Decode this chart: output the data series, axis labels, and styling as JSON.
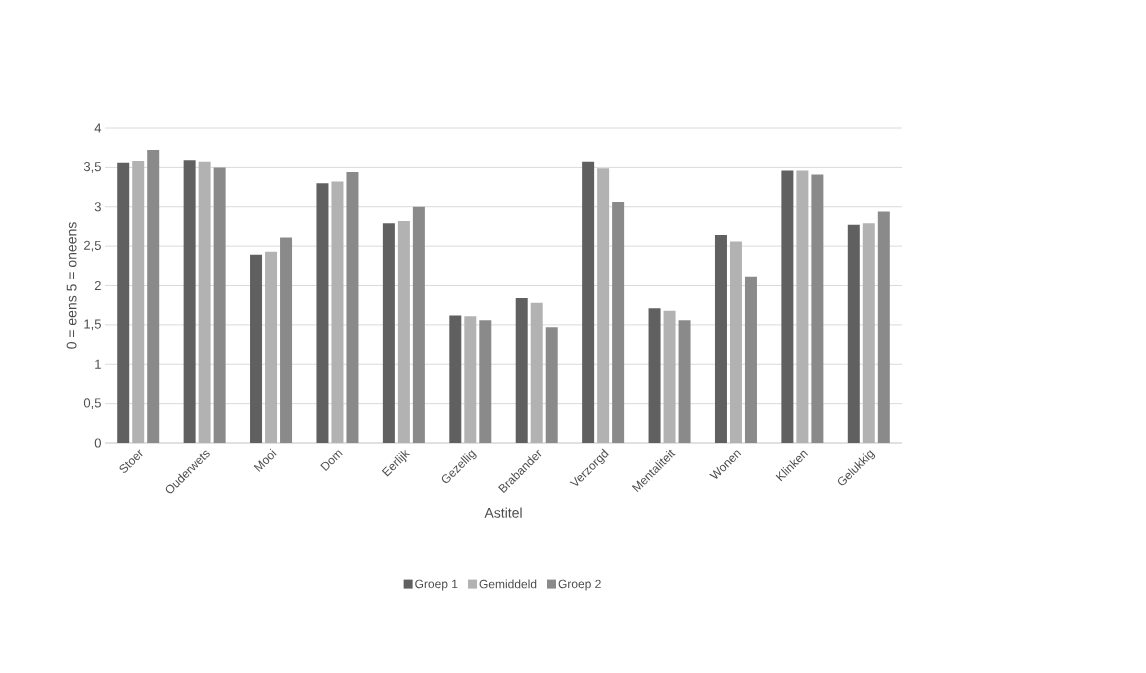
{
  "chart_data": {
    "type": "bar",
    "xlabel": "Astitel",
    "ylabel": "0 = eens          5 = oneens",
    "categories": [
      "Stoer",
      "Ouderwets",
      "Mooi",
      "Dom",
      "Eerlijk",
      "Gezellig",
      "Brabander",
      "Verzorgd",
      "Mentaliteit",
      "Wonen",
      "Klinken",
      "Gelukkig"
    ],
    "series": [
      {
        "name": "Groep 1",
        "color": "#606060",
        "values": [
          3.56,
          3.59,
          2.39,
          3.3,
          2.79,
          1.62,
          1.84,
          3.57,
          1.71,
          2.64,
          3.46,
          2.77
        ]
      },
      {
        "name": "Gemiddeld",
        "color": "#b2b2b2",
        "values": [
          3.58,
          3.57,
          2.43,
          3.32,
          2.82,
          1.61,
          1.78,
          3.49,
          1.68,
          2.56,
          3.46,
          2.79
        ]
      },
      {
        "name": "Groep 2",
        "color": "#8a8a8a",
        "values": [
          3.72,
          3.5,
          2.61,
          3.44,
          3.0,
          1.56,
          1.47,
          3.06,
          1.56,
          2.11,
          3.41,
          2.94
        ]
      }
    ],
    "ylim": [
      0,
      4
    ],
    "yticks": [
      0,
      {
        "value": 0.5,
        "label": "0,5"
      },
      1,
      {
        "value": 1.5,
        "label": "1,5"
      },
      2,
      {
        "value": 2.5,
        "label": "2,5"
      },
      3,
      {
        "value": 3.5,
        "label": "3,5"
      },
      4
    ],
    "grid": "y",
    "legend": "bottom"
  }
}
